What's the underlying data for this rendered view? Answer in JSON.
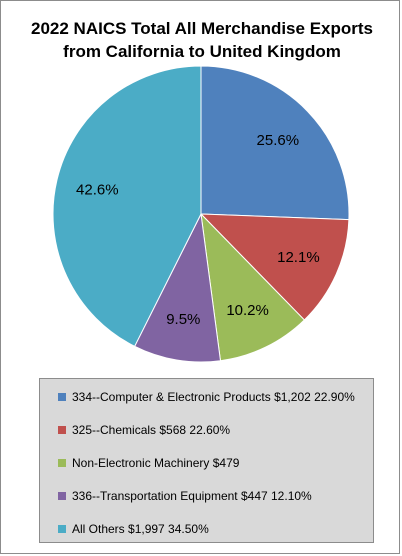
{
  "chart_data": {
    "type": "pie",
    "title_lines": [
      "2022 NAICS Total All Merchandise Exports",
      "from California to United Kingdom"
    ],
    "slices": [
      {
        "label": "334--Computer & Electronic Products $1,202 22.90%",
        "value": 25.6,
        "display": "25.6%",
        "color": "#4f81bd"
      },
      {
        "label": "325--Chemicals $568 22.60%",
        "value": 12.1,
        "display": "12.1%",
        "color": "#c0504d"
      },
      {
        "label": "Non-Electronic Machinery $479",
        "value": 10.2,
        "display": "10.2%",
        "color": "#9bbb59"
      },
      {
        "label": "336--Transportation Equipment $447 12.10%",
        "value": 9.5,
        "display": "9.5%",
        "color": "#8064a2"
      },
      {
        "label": "All Others $1,997  34.50%",
        "value": 42.6,
        "display": "42.6%",
        "color": "#4bacc6"
      }
    ],
    "start_angle_deg": 0,
    "direction": "clockwise",
    "legend_position": "bottom"
  }
}
